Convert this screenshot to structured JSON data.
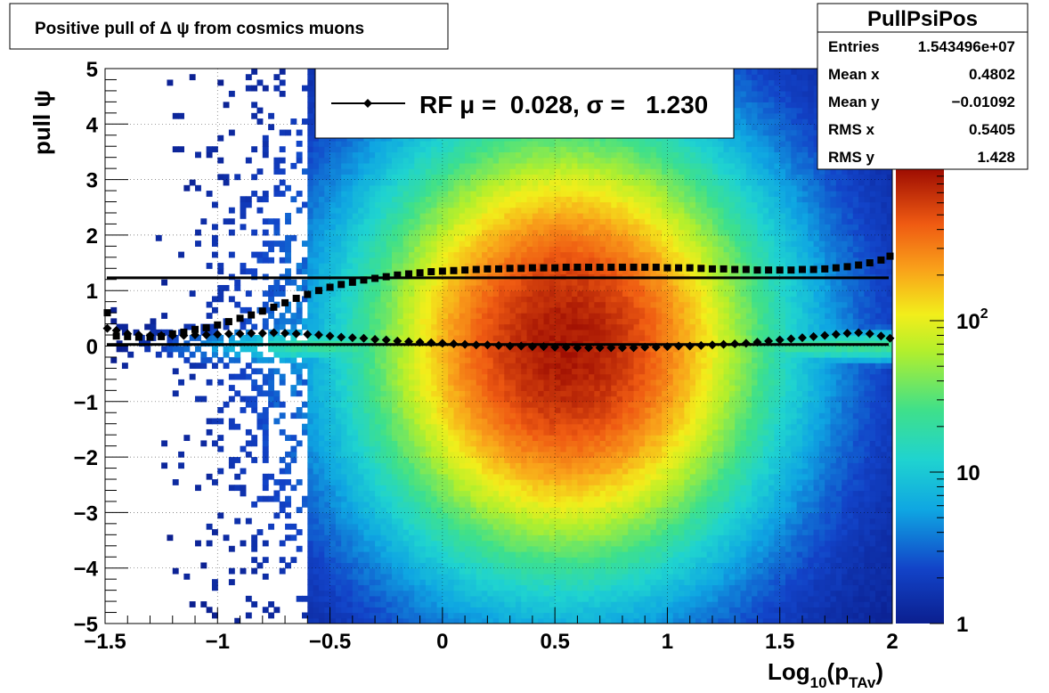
{
  "chart_data": {
    "type": "heatmap",
    "title": "Positive pull of Δ ψ from cosmics muons",
    "xlabel": {
      "main": "Log",
      "sub1": "10",
      "mid": "(p",
      "sub2": "TAv",
      "end": ")"
    },
    "ylabel": "pull ψ",
    "xlim": [
      -1.5,
      2
    ],
    "ylim": [
      -5,
      5
    ],
    "x_ticks": [
      -1.5,
      -1,
      -0.5,
      0,
      0.5,
      1,
      1.5,
      2
    ],
    "x_tick_labels": [
      "−1.5",
      "−1",
      "−0.5",
      "0",
      "0.5",
      "1",
      "1.5",
      "2"
    ],
    "y_ticks": [
      -5,
      -4,
      -3,
      -2,
      -1,
      0,
      1,
      2,
      3,
      4,
      5
    ],
    "y_tick_labels": [
      "−5",
      "−4",
      "−3",
      "−2",
      "−1",
      "0",
      "1",
      "2",
      "3",
      "4",
      "5"
    ],
    "grid": true,
    "log_z": true,
    "z_tick_labels": [
      {
        "value": 1,
        "base": "1",
        "exp": ""
      },
      {
        "value": 10,
        "base": "10",
        "exp": ""
      },
      {
        "value": 100,
        "base": "10",
        "exp": "2"
      }
    ],
    "zlim": [
      1,
      1000
    ],
    "legend": {
      "label": "RF μ =  0.028, σ =   1.230",
      "position": "top-center"
    },
    "stats": {
      "name": "PullPsiPos",
      "rows": [
        {
          "label": "Entries",
          "value": "1.543496e+07"
        },
        {
          "label": "Mean x",
          "value": "0.4802"
        },
        {
          "label": "Mean y",
          "value": "−0.01092"
        },
        {
          "label": "RMS x",
          "value": "0.5405"
        },
        {
          "label": "RMS y",
          "value": "1.428"
        }
      ],
      "position": "top-right"
    },
    "series": [
      {
        "marker": "diamond",
        "x": [
          -1.49,
          -1.45,
          -1.4,
          -1.35,
          -1.3,
          -1.25,
          -1.2,
          -1.15,
          -1.1,
          -1.05,
          -1.0,
          -0.95,
          -0.9,
          -0.85,
          -0.8,
          -0.75,
          -0.7,
          -0.65,
          -0.6,
          -0.55,
          -0.5,
          -0.45,
          -0.4,
          -0.35,
          -0.3,
          -0.25,
          -0.2,
          -0.15,
          -0.1,
          -0.05,
          0.0,
          0.05,
          0.1,
          0.15,
          0.2,
          0.25,
          0.3,
          0.35,
          0.4,
          0.45,
          0.5,
          0.55,
          0.6,
          0.65,
          0.7,
          0.75,
          0.8,
          0.85,
          0.9,
          0.95,
          1.0,
          1.05,
          1.1,
          1.15,
          1.2,
          1.25,
          1.3,
          1.35,
          1.4,
          1.45,
          1.5,
          1.55,
          1.6,
          1.65,
          1.7,
          1.75,
          1.8,
          1.85,
          1.9,
          1.95,
          1.99
        ],
        "y": [
          0.32,
          0.28,
          0.22,
          0.2,
          0.19,
          0.19,
          0.19,
          0.19,
          0.2,
          0.2,
          0.21,
          0.22,
          0.22,
          0.23,
          0.23,
          0.24,
          0.23,
          0.22,
          0.21,
          0.2,
          0.18,
          0.16,
          0.15,
          0.14,
          0.12,
          0.11,
          0.09,
          0.08,
          0.07,
          0.06,
          0.05,
          0.04,
          0.03,
          0.02,
          0.02,
          0.01,
          0.0,
          0.0,
          -0.01,
          -0.01,
          -0.02,
          -0.02,
          -0.03,
          -0.03,
          -0.03,
          -0.03,
          -0.03,
          -0.03,
          -0.02,
          -0.02,
          -0.01,
          0.0,
          0.0,
          0.01,
          0.02,
          0.03,
          0.04,
          0.05,
          0.07,
          0.09,
          0.11,
          0.13,
          0.15,
          0.17,
          0.19,
          0.21,
          0.23,
          0.24,
          0.22,
          0.18,
          0.14
        ]
      },
      {
        "marker": "square",
        "x": [
          -1.49,
          -1.45,
          -1.4,
          -1.35,
          -1.3,
          -1.25,
          -1.2,
          -1.15,
          -1.1,
          -1.05,
          -1.0,
          -0.95,
          -0.9,
          -0.85,
          -0.8,
          -0.75,
          -0.7,
          -0.65,
          -0.6,
          -0.55,
          -0.5,
          -0.45,
          -0.4,
          -0.35,
          -0.3,
          -0.25,
          -0.2,
          -0.15,
          -0.1,
          -0.05,
          0.0,
          0.05,
          0.1,
          0.15,
          0.2,
          0.25,
          0.3,
          0.35,
          0.4,
          0.45,
          0.5,
          0.55,
          0.6,
          0.65,
          0.7,
          0.75,
          0.8,
          0.85,
          0.9,
          0.95,
          1.0,
          1.05,
          1.1,
          1.15,
          1.2,
          1.25,
          1.3,
          1.35,
          1.4,
          1.45,
          1.5,
          1.55,
          1.6,
          1.65,
          1.7,
          1.75,
          1.8,
          1.85,
          1.9,
          1.95,
          1.99
        ],
        "y": [
          0.6,
          0.18,
          0.17,
          0.16,
          0.16,
          0.17,
          0.22,
          0.25,
          0.3,
          0.33,
          0.38,
          0.44,
          0.5,
          0.56,
          0.63,
          0.7,
          0.78,
          0.86,
          0.93,
          1.0,
          1.06,
          1.11,
          1.15,
          1.19,
          1.22,
          1.25,
          1.28,
          1.3,
          1.32,
          1.34,
          1.35,
          1.36,
          1.37,
          1.38,
          1.39,
          1.39,
          1.4,
          1.4,
          1.41,
          1.41,
          1.41,
          1.42,
          1.42,
          1.42,
          1.42,
          1.42,
          1.42,
          1.42,
          1.42,
          1.42,
          1.41,
          1.41,
          1.41,
          1.4,
          1.39,
          1.39,
          1.38,
          1.38,
          1.37,
          1.37,
          1.37,
          1.37,
          1.38,
          1.38,
          1.39,
          1.41,
          1.43,
          1.46,
          1.5,
          1.55,
          1.62
        ]
      }
    ],
    "fit_lines": [
      1.23,
      0.028
    ]
  }
}
